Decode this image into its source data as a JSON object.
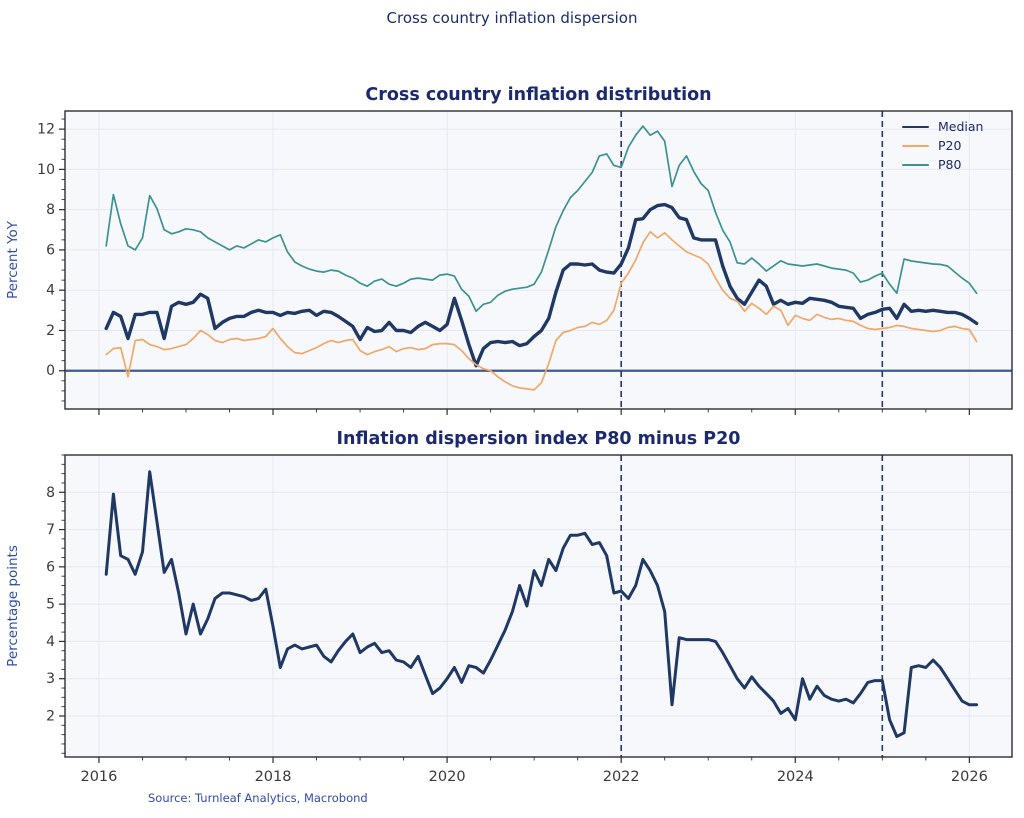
{
  "header": {
    "title": "Cross country inflation dispersion"
  },
  "footer": {
    "source": "Source: Turnleaf Analytics, Macrobond"
  },
  "style": {
    "plot_bg": "#f7f8fb",
    "grid": "#e5e8f3",
    "spine": "#2e2e2e",
    "tick_label": "#3a3a3a",
    "axis_label": "#2f4cac",
    "title_color": "#1b2a6e",
    "dashed_line": "#26376b",
    "zero_line": "#3e5a94",
    "median_color": "#1f3864",
    "p20_color": "#f0a868",
    "p80_color": "#3c9292"
  },
  "chart_data": [
    {
      "type": "line",
      "title": "Cross country inflation distribution",
      "ylabel": "Percent YoY",
      "x_start": 2016.0833,
      "x_frequency": "monthly",
      "xlim": [
        2015.61,
        2026.49
      ],
      "ylim": [
        -1.9,
        12.9
      ],
      "xticks": [
        2016,
        2018,
        2020,
        2022,
        2024,
        2026
      ],
      "x_minor_step": 0.5,
      "yticks": [
        0,
        2,
        4,
        6,
        8,
        10,
        12
      ],
      "y_minor_step": 0.5,
      "show_x_labels": false,
      "grid": true,
      "legend_position": "upper right",
      "hlines": [
        {
          "y": 0
        }
      ],
      "vlines": [
        {
          "x": 2022,
          "style": "dashed"
        },
        {
          "x": 2025,
          "style": "dashed"
        }
      ],
      "series": [
        {
          "name": "Median",
          "color": "#1f3864",
          "width": 3.4,
          "values": [
            2.1,
            2.9,
            2.7,
            1.6,
            2.8,
            2.8,
            2.9,
            2.9,
            1.6,
            3.2,
            3.4,
            3.3,
            3.4,
            3.8,
            3.6,
            2.1,
            2.4,
            2.6,
            2.7,
            2.7,
            2.9,
            3.0,
            2.9,
            2.9,
            2.75,
            2.9,
            2.85,
            2.95,
            3.0,
            2.75,
            2.95,
            2.9,
            2.7,
            2.45,
            2.2,
            1.55,
            2.15,
            1.95,
            2.0,
            2.4,
            2.0,
            2.0,
            1.9,
            2.2,
            2.4,
            2.2,
            2.0,
            2.3,
            3.6,
            2.5,
            1.3,
            0.25,
            1.1,
            1.4,
            1.45,
            1.4,
            1.45,
            1.25,
            1.35,
            1.7,
            2.0,
            2.6,
            3.9,
            5.0,
            5.3,
            5.3,
            5.25,
            5.3,
            5.0,
            4.9,
            4.85,
            5.3,
            6.1,
            7.5,
            7.55,
            8.0,
            8.2,
            8.25,
            8.1,
            7.6,
            7.5,
            6.6,
            6.5,
            6.5,
            6.5,
            5.2,
            4.2,
            3.6,
            3.3,
            3.9,
            4.5,
            4.2,
            3.3,
            3.5,
            3.3,
            3.4,
            3.35,
            3.6,
            3.55,
            3.5,
            3.4,
            3.2,
            3.15,
            3.1,
            2.6,
            2.8,
            2.9,
            3.05,
            3.1,
            2.6,
            3.3,
            2.95,
            3.0,
            2.95,
            3.0,
            2.95,
            2.9,
            2.9,
            2.8,
            2.6,
            2.35
          ]
        },
        {
          "name": "P20",
          "color": "#f0a868",
          "width": 1.7,
          "values": [
            0.8,
            1.1,
            1.15,
            -0.3,
            1.5,
            1.55,
            1.3,
            1.2,
            1.05,
            1.1,
            1.2,
            1.3,
            1.6,
            2.0,
            1.8,
            1.5,
            1.4,
            1.55,
            1.6,
            1.5,
            1.55,
            1.6,
            1.7,
            2.1,
            1.6,
            1.2,
            0.9,
            0.85,
            1.0,
            1.15,
            1.35,
            1.5,
            1.4,
            1.5,
            1.55,
            1.0,
            0.8,
            0.95,
            1.05,
            1.2,
            0.95,
            1.1,
            1.15,
            1.05,
            1.1,
            1.3,
            1.35,
            1.35,
            1.3,
            1.0,
            0.6,
            0.3,
            0.1,
            0.0,
            -0.3,
            -0.55,
            -0.75,
            -0.85,
            -0.9,
            -0.95,
            -0.6,
            0.35,
            1.5,
            1.9,
            2.0,
            2.15,
            2.2,
            2.4,
            2.3,
            2.5,
            3.0,
            4.35,
            4.85,
            5.5,
            6.35,
            6.9,
            6.6,
            6.85,
            6.5,
            6.2,
            5.9,
            5.75,
            5.6,
            5.3,
            4.6,
            4.0,
            3.6,
            3.45,
            2.95,
            3.35,
            3.1,
            2.8,
            3.2,
            3.0,
            2.25,
            2.75,
            2.6,
            2.5,
            2.8,
            2.65,
            2.55,
            2.6,
            2.5,
            2.45,
            2.25,
            2.1,
            2.05,
            2.1,
            2.15,
            2.25,
            2.2,
            2.1,
            2.05,
            2.0,
            1.95,
            2.0,
            2.15,
            2.2,
            2.1,
            2.05,
            1.45
          ]
        },
        {
          "name": "P80",
          "color": "#3c9292",
          "width": 1.7,
          "values": [
            6.2,
            8.75,
            7.3,
            6.2,
            6.0,
            6.6,
            8.7,
            8.05,
            7.0,
            6.8,
            6.9,
            7.05,
            7.0,
            6.9,
            6.6,
            6.4,
            6.2,
            6.0,
            6.2,
            6.1,
            6.3,
            6.5,
            6.4,
            6.6,
            6.75,
            5.9,
            5.4,
            5.2,
            5.05,
            4.95,
            4.9,
            5.0,
            4.95,
            4.75,
            4.6,
            4.35,
            4.2,
            4.45,
            4.55,
            4.3,
            4.2,
            4.35,
            4.55,
            4.6,
            4.55,
            4.5,
            4.75,
            4.8,
            4.7,
            4.05,
            3.7,
            2.95,
            3.3,
            3.4,
            3.75,
            3.95,
            4.05,
            4.1,
            4.15,
            4.3,
            4.9,
            6.0,
            7.15,
            7.95,
            8.6,
            8.95,
            9.4,
            9.85,
            10.67,
            10.77,
            10.2,
            10.1,
            11.1,
            11.7,
            12.15,
            11.7,
            11.9,
            11.4,
            9.15,
            10.2,
            10.67,
            9.9,
            9.3,
            8.95,
            7.87,
            6.98,
            6.4,
            5.36,
            5.3,
            5.6,
            5.3,
            4.95,
            5.2,
            5.46,
            5.3,
            5.25,
            5.2,
            5.25,
            5.3,
            5.2,
            5.1,
            5.05,
            5.0,
            4.85,
            4.4,
            4.5,
            4.7,
            4.85,
            4.3,
            3.85,
            5.55,
            5.45,
            5.4,
            5.35,
            5.3,
            5.28,
            5.2,
            4.9,
            4.6,
            4.35,
            3.85
          ]
        }
      ]
    },
    {
      "type": "line",
      "title": "Inflation dispersion index P80 minus P20",
      "ylabel": "Percentage points",
      "x_start": 2016.0833,
      "x_frequency": "monthly",
      "xlim": [
        2015.61,
        2026.49
      ],
      "ylim": [
        0.9,
        9.0
      ],
      "xticks": [
        2016,
        2018,
        2020,
        2022,
        2024,
        2026
      ],
      "x_minor_step": 0.5,
      "yticks": [
        2,
        3,
        4,
        5,
        6,
        7,
        8
      ],
      "y_minor_step": 0.25,
      "show_x_labels": true,
      "grid": true,
      "hlines": [],
      "vlines": [
        {
          "x": 2022,
          "style": "dashed"
        },
        {
          "x": 2025,
          "style": "dashed"
        }
      ],
      "series": [
        {
          "name": "P80 minus P20",
          "color": "#1f3864",
          "width": 3.0,
          "values": [
            5.8,
            7.95,
            6.3,
            6.2,
            5.8,
            6.4,
            8.55,
            7.2,
            5.85,
            6.2,
            5.3,
            4.2,
            5.0,
            4.2,
            4.6,
            5.15,
            5.3,
            5.3,
            5.25,
            5.2,
            5.1,
            5.15,
            5.4,
            4.4,
            3.3,
            3.8,
            3.9,
            3.8,
            3.85,
            3.9,
            3.6,
            3.45,
            3.75,
            4.0,
            4.2,
            3.7,
            3.85,
            3.95,
            3.7,
            3.75,
            3.5,
            3.45,
            3.3,
            3.6,
            3.1,
            2.6,
            2.75,
            3.0,
            3.3,
            2.9,
            3.35,
            3.3,
            3.15,
            3.5,
            3.9,
            4.3,
            4.8,
            5.5,
            4.95,
            5.9,
            5.5,
            6.2,
            5.9,
            6.5,
            6.85,
            6.85,
            6.9,
            6.6,
            6.65,
            6.3,
            5.3,
            5.35,
            5.15,
            5.5,
            6.2,
            5.9,
            5.5,
            4.8,
            2.3,
            4.1,
            4.05,
            4.05,
            4.05,
            4.05,
            4.0,
            3.7,
            3.35,
            3.0,
            2.75,
            3.05,
            2.8,
            2.6,
            2.4,
            2.07,
            2.2,
            1.9,
            3.0,
            2.45,
            2.8,
            2.55,
            2.45,
            2.4,
            2.45,
            2.35,
            2.6,
            2.9,
            2.95,
            2.95,
            1.9,
            1.45,
            1.55,
            3.3,
            3.35,
            3.3,
            3.5,
            3.3,
            3.0,
            2.7,
            2.4,
            2.3,
            2.3
          ]
        }
      ]
    }
  ]
}
